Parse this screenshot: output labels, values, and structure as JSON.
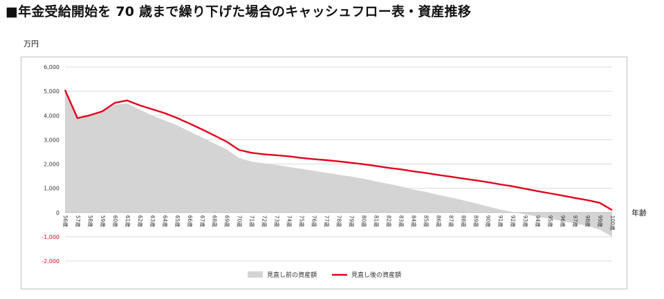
{
  "title": "■年金受給開始を 70 歳まで繰り下げた場合のキャッシュフロー表・資産推移",
  "chart_data": {
    "type": "area",
    "ylabel": "万円",
    "xlabel": "年齢",
    "ylim": [
      -2000,
      6000
    ],
    "yticks": [
      6000,
      5000,
      4000,
      3000,
      2000,
      1000,
      0,
      -1000,
      -2000
    ],
    "ytick_labels": [
      "6,000",
      "5,000",
      "4,000",
      "3,000",
      "2,000",
      "1,000",
      "0",
      "-1,000",
      "-2,000"
    ],
    "negative_tick_color": "#e3001b",
    "grid": true,
    "legend": "bottom",
    "categories": [
      "56歳",
      "57歳",
      "58歳",
      "59歳",
      "60歳",
      "61歳",
      "62歳",
      "63歳",
      "64歳",
      "65歳",
      "66歳",
      "67歳",
      "68歳",
      "69歳",
      "70歳",
      "71歳",
      "72歳",
      "73歳",
      "74歳",
      "75歳",
      "76歳",
      "77歳",
      "78歳",
      "79歳",
      "80歳",
      "81歳",
      "82歳",
      "83歳",
      "84歳",
      "85歳",
      "86歳",
      "87歳",
      "88歳",
      "89歳",
      "90歳",
      "91歳",
      "92歳",
      "93歳",
      "94歳",
      "95歳",
      "96歳",
      "97歳",
      "98歳",
      "99歳",
      "100歳"
    ],
    "series": [
      {
        "name": "見直し前の資産額",
        "style": "area",
        "color": "#d4d4d4",
        "values": [
          5050,
          3870,
          4000,
          4150,
          4450,
          4500,
          4250,
          4000,
          3800,
          3600,
          3350,
          3100,
          2850,
          2600,
          2250,
          2100,
          2030,
          1960,
          1880,
          1800,
          1720,
          1640,
          1560,
          1480,
          1400,
          1280,
          1180,
          1080,
          950,
          850,
          730,
          620,
          510,
          380,
          250,
          120,
          20,
          -80,
          -170,
          -260,
          -350,
          -450,
          -550,
          -700,
          -1000
        ]
      },
      {
        "name": "見直し後の資産額",
        "style": "line",
        "color": "#e3001b",
        "values": [
          5050,
          3890,
          4010,
          4170,
          4520,
          4620,
          4420,
          4260,
          4100,
          3900,
          3670,
          3430,
          3180,
          2920,
          2580,
          2460,
          2400,
          2360,
          2320,
          2250,
          2200,
          2160,
          2110,
          2050,
          1990,
          1920,
          1840,
          1780,
          1700,
          1630,
          1550,
          1480,
          1400,
          1330,
          1250,
          1160,
          1080,
          980,
          880,
          790,
          700,
          600,
          510,
          400,
          100
        ]
      }
    ]
  }
}
